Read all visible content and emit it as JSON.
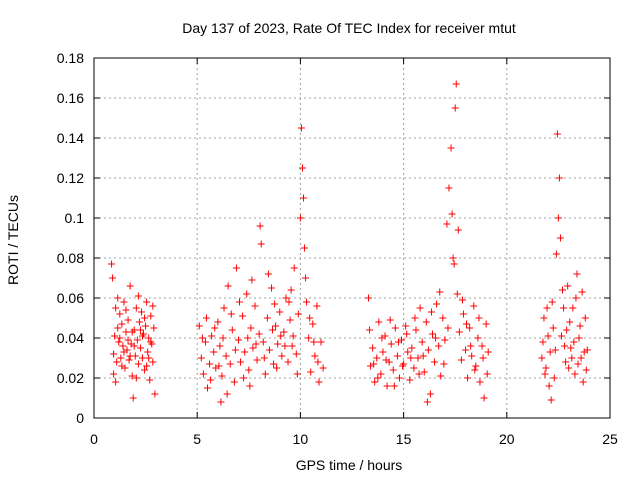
{
  "chart_data": {
    "type": "scatter",
    "title": "Day 137 of 2023, Rate Of TEC Index for receiver mtut",
    "xlabel": "GPS time / hours",
    "ylabel": "ROTI / TECUs",
    "xlim": [
      0,
      25
    ],
    "ylim": [
      0,
      0.18
    ],
    "xticks": [
      0,
      5,
      10,
      15,
      20,
      25
    ],
    "yticks": [
      0,
      0.02,
      0.04,
      0.06,
      0.08,
      0.1,
      0.12,
      0.14,
      0.16,
      0.18
    ],
    "xtick_labels": [
      "0",
      "5",
      "10",
      "15",
      "20",
      "25"
    ],
    "ytick_labels": [
      "0",
      "0.02",
      "0.04",
      "0.06",
      "0.08",
      "0.1",
      "0.12",
      "0.14",
      "0.16",
      "0.18"
    ],
    "grid": true,
    "marker": "+",
    "color": "#ff0000",
    "points": [
      [
        0.85,
        0.077
      ],
      [
        0.9,
        0.07
      ],
      [
        0.95,
        0.032
      ],
      [
        1.0,
        0.041
      ],
      [
        1.05,
        0.055
      ],
      [
        1.1,
        0.028
      ],
      [
        1.15,
        0.045
      ],
      [
        1.2,
        0.038
      ],
      [
        1.25,
        0.052
      ],
      [
        1.3,
        0.03
      ],
      [
        1.35,
        0.047
      ],
      [
        1.4,
        0.036
      ],
      [
        1.45,
        0.058
      ],
      [
        1.5,
        0.025
      ],
      [
        1.55,
        0.043
      ],
      [
        1.6,
        0.034
      ],
      [
        1.65,
        0.049
      ],
      [
        1.7,
        0.029
      ],
      [
        1.75,
        0.066
      ],
      [
        1.8,
        0.037
      ],
      [
        1.85,
        0.021
      ],
      [
        1.9,
        0.01
      ],
      [
        1.95,
        0.044
      ],
      [
        2.0,
        0.031
      ],
      [
        2.05,
        0.055
      ],
      [
        2.1,
        0.039
      ],
      [
        2.15,
        0.027
      ],
      [
        2.2,
        0.048
      ],
      [
        2.25,
        0.035
      ],
      [
        2.3,
        0.053
      ],
      [
        2.35,
        0.03
      ],
      [
        2.4,
        0.042
      ],
      [
        2.45,
        0.024
      ],
      [
        2.5,
        0.046
      ],
      [
        2.55,
        0.058
      ],
      [
        2.6,
        0.033
      ],
      [
        2.65,
        0.04
      ],
      [
        2.7,
        0.019
      ],
      [
        2.75,
        0.051
      ],
      [
        2.8,
        0.037
      ],
      [
        2.85,
        0.028
      ],
      [
        2.9,
        0.045
      ],
      [
        2.95,
        0.012
      ],
      [
        0.95,
        0.022
      ],
      [
        1.05,
        0.018
      ],
      [
        1.15,
        0.06
      ],
      [
        1.25,
        0.04
      ],
      [
        1.45,
        0.033
      ],
      [
        1.65,
        0.039
      ],
      [
        1.85,
        0.043
      ],
      [
        2.05,
        0.02
      ],
      [
        2.25,
        0.044
      ],
      [
        2.45,
        0.05
      ],
      [
        2.65,
        0.03
      ],
      [
        2.85,
        0.056
      ],
      [
        1.35,
        0.026
      ],
      [
        1.55,
        0.054
      ],
      [
        1.75,
        0.031
      ],
      [
        1.95,
        0.036
      ],
      [
        2.15,
        0.061
      ],
      [
        2.35,
        0.041
      ],
      [
        2.55,
        0.026
      ],
      [
        2.75,
        0.038
      ],
      [
        5.1,
        0.046
      ],
      [
        5.2,
        0.03
      ],
      [
        5.3,
        0.022
      ],
      [
        5.4,
        0.038
      ],
      [
        5.5,
        0.015
      ],
      [
        5.6,
        0.027
      ],
      [
        5.7,
        0.041
      ],
      [
        5.8,
        0.033
      ],
      [
        5.9,
        0.025
      ],
      [
        6.0,
        0.048
      ],
      [
        6.1,
        0.036
      ],
      [
        6.2,
        0.021
      ],
      [
        6.3,
        0.055
      ],
      [
        6.4,
        0.031
      ],
      [
        6.5,
        0.066
      ],
      [
        6.6,
        0.027
      ],
      [
        6.7,
        0.044
      ],
      [
        6.8,
        0.018
      ],
      [
        6.9,
        0.075
      ],
      [
        7.0,
        0.039
      ],
      [
        7.1,
        0.028
      ],
      [
        7.2,
        0.051
      ],
      [
        7.3,
        0.033
      ],
      [
        7.4,
        0.062
      ],
      [
        7.5,
        0.024
      ],
      [
        7.6,
        0.045
      ],
      [
        7.7,
        0.035
      ],
      [
        7.8,
        0.056
      ],
      [
        7.9,
        0.029
      ],
      [
        8.0,
        0.042
      ],
      [
        8.1,
        0.087
      ],
      [
        8.2,
        0.038
      ],
      [
        8.3,
        0.022
      ],
      [
        8.4,
        0.05
      ],
      [
        8.5,
        0.034
      ],
      [
        8.6,
        0.065
      ],
      [
        8.7,
        0.027
      ],
      [
        8.8,
        0.046
      ],
      [
        8.9,
        0.037
      ],
      [
        9.0,
        0.053
      ],
      [
        9.1,
        0.031
      ],
      [
        9.2,
        0.043
      ],
      [
        9.3,
        0.06
      ],
      [
        9.4,
        0.028
      ],
      [
        9.5,
        0.049
      ],
      [
        9.6,
        0.036
      ],
      [
        9.7,
        0.075
      ],
      [
        9.8,
        0.032
      ],
      [
        9.9,
        0.052
      ],
      [
        10.0,
        0.1
      ],
      [
        10.05,
        0.145
      ],
      [
        10.1,
        0.125
      ],
      [
        10.15,
        0.11
      ],
      [
        10.2,
        0.085
      ],
      [
        10.3,
        0.058
      ],
      [
        10.4,
        0.04
      ],
      [
        10.5,
        0.023
      ],
      [
        10.6,
        0.047
      ],
      [
        10.7,
        0.031
      ],
      [
        10.8,
        0.056
      ],
      [
        10.9,
        0.018
      ],
      [
        11.0,
        0.038
      ],
      [
        11.1,
        0.025
      ],
      [
        5.25,
        0.04
      ],
      [
        5.45,
        0.05
      ],
      [
        5.65,
        0.019
      ],
      [
        5.85,
        0.045
      ],
      [
        6.05,
        0.026
      ],
      [
        6.25,
        0.04
      ],
      [
        6.45,
        0.012
      ],
      [
        6.65,
        0.052
      ],
      [
        6.85,
        0.034
      ],
      [
        7.05,
        0.058
      ],
      [
        7.25,
        0.02
      ],
      [
        7.45,
        0.04
      ],
      [
        7.65,
        0.069
      ],
      [
        7.85,
        0.037
      ],
      [
        8.05,
        0.096
      ],
      [
        8.25,
        0.03
      ],
      [
        8.45,
        0.072
      ],
      [
        8.65,
        0.044
      ],
      [
        8.85,
        0.025
      ],
      [
        9.05,
        0.041
      ],
      [
        9.25,
        0.036
      ],
      [
        9.45,
        0.058
      ],
      [
        9.65,
        0.041
      ],
      [
        9.85,
        0.022
      ],
      [
        10.25,
        0.07
      ],
      [
        10.45,
        0.05
      ],
      [
        10.65,
        0.038
      ],
      [
        10.85,
        0.028
      ],
      [
        6.15,
        0.008
      ],
      [
        7.55,
        0.016
      ],
      [
        8.75,
        0.057
      ],
      [
        9.55,
        0.064
      ],
      [
        13.3,
        0.06
      ],
      [
        13.4,
        0.026
      ],
      [
        13.5,
        0.035
      ],
      [
        13.6,
        0.018
      ],
      [
        13.7,
        0.03
      ],
      [
        13.8,
        0.048
      ],
      [
        13.9,
        0.022
      ],
      [
        14.0,
        0.033
      ],
      [
        14.1,
        0.041
      ],
      [
        14.2,
        0.016
      ],
      [
        14.3,
        0.028
      ],
      [
        14.4,
        0.037
      ],
      [
        14.5,
        0.024
      ],
      [
        14.6,
        0.045
      ],
      [
        14.7,
        0.031
      ],
      [
        14.8,
        0.02
      ],
      [
        14.9,
        0.039
      ],
      [
        15.0,
        0.027
      ],
      [
        15.1,
        0.046
      ],
      [
        15.2,
        0.033
      ],
      [
        15.3,
        0.019
      ],
      [
        15.4,
        0.035
      ],
      [
        15.5,
        0.025
      ],
      [
        15.6,
        0.044
      ],
      [
        15.7,
        0.03
      ],
      [
        15.8,
        0.055
      ],
      [
        15.9,
        0.038
      ],
      [
        16.0,
        0.023
      ],
      [
        16.1,
        0.048
      ],
      [
        16.2,
        0.034
      ],
      [
        16.3,
        0.012
      ],
      [
        16.4,
        0.042
      ],
      [
        16.5,
        0.028
      ],
      [
        16.6,
        0.057
      ],
      [
        16.7,
        0.036
      ],
      [
        16.8,
        0.021
      ],
      [
        16.9,
        0.05
      ],
      [
        17.0,
        0.039
      ],
      [
        17.1,
        0.097
      ],
      [
        17.2,
        0.115
      ],
      [
        17.3,
        0.135
      ],
      [
        17.4,
        0.08
      ],
      [
        17.5,
        0.155
      ],
      [
        17.55,
        0.167
      ],
      [
        17.6,
        0.062
      ],
      [
        17.7,
        0.043
      ],
      [
        17.8,
        0.029
      ],
      [
        17.9,
        0.052
      ],
      [
        18.0,
        0.034
      ],
      [
        18.1,
        0.02
      ],
      [
        18.2,
        0.045
      ],
      [
        18.3,
        0.031
      ],
      [
        18.4,
        0.056
      ],
      [
        18.5,
        0.026
      ],
      [
        18.6,
        0.04
      ],
      [
        18.7,
        0.018
      ],
      [
        18.8,
        0.036
      ],
      [
        18.9,
        0.01
      ],
      [
        19.0,
        0.047
      ],
      [
        19.1,
        0.033
      ],
      [
        13.35,
        0.044
      ],
      [
        13.55,
        0.027
      ],
      [
        13.75,
        0.02
      ],
      [
        13.95,
        0.04
      ],
      [
        14.15,
        0.029
      ],
      [
        14.35,
        0.049
      ],
      [
        14.55,
        0.016
      ],
      [
        14.75,
        0.038
      ],
      [
        14.95,
        0.026
      ],
      [
        15.15,
        0.042
      ],
      [
        15.35,
        0.03
      ],
      [
        15.55,
        0.05
      ],
      [
        15.75,
        0.022
      ],
      [
        15.95,
        0.031
      ],
      [
        16.15,
        0.008
      ],
      [
        16.35,
        0.053
      ],
      [
        16.55,
        0.04
      ],
      [
        16.75,
        0.063
      ],
      [
        16.95,
        0.027
      ],
      [
        17.15,
        0.045
      ],
      [
        17.35,
        0.102
      ],
      [
        17.45,
        0.077
      ],
      [
        17.65,
        0.094
      ],
      [
        17.85,
        0.059
      ],
      [
        18.05,
        0.047
      ],
      [
        18.25,
        0.036
      ],
      [
        18.45,
        0.024
      ],
      [
        18.65,
        0.05
      ],
      [
        18.85,
        0.03
      ],
      [
        19.05,
        0.022
      ],
      [
        21.7,
        0.03
      ],
      [
        21.8,
        0.05
      ],
      [
        21.9,
        0.025
      ],
      [
        22.0,
        0.041
      ],
      [
        22.1,
        0.033
      ],
      [
        22.2,
        0.058
      ],
      [
        22.3,
        0.02
      ],
      [
        22.4,
        0.082
      ],
      [
        22.45,
        0.142
      ],
      [
        22.5,
        0.1
      ],
      [
        22.55,
        0.12
      ],
      [
        22.6,
        0.09
      ],
      [
        22.7,
        0.064
      ],
      [
        22.8,
        0.036
      ],
      [
        22.9,
        0.044
      ],
      [
        23.0,
        0.025
      ],
      [
        23.1,
        0.035
      ],
      [
        23.2,
        0.055
      ],
      [
        23.3,
        0.022
      ],
      [
        23.4,
        0.072
      ],
      [
        23.5,
        0.04
      ],
      [
        23.6,
        0.03
      ],
      [
        23.7,
        0.018
      ],
      [
        23.8,
        0.05
      ],
      [
        23.9,
        0.034
      ],
      [
        21.75,
        0.038
      ],
      [
        21.85,
        0.022
      ],
      [
        21.95,
        0.055
      ],
      [
        22.05,
        0.016
      ],
      [
        22.15,
        0.009
      ],
      [
        22.25,
        0.045
      ],
      [
        22.35,
        0.034
      ],
      [
        22.65,
        0.041
      ],
      [
        22.75,
        0.055
      ],
      [
        22.85,
        0.028
      ],
      [
        22.95,
        0.066
      ],
      [
        23.05,
        0.048
      ],
      [
        23.15,
        0.03
      ],
      [
        23.25,
        0.038
      ],
      [
        23.35,
        0.06
      ],
      [
        23.45,
        0.027
      ],
      [
        23.55,
        0.046
      ],
      [
        23.65,
        0.063
      ],
      [
        23.75,
        0.033
      ],
      [
        23.85,
        0.024
      ]
    ]
  }
}
